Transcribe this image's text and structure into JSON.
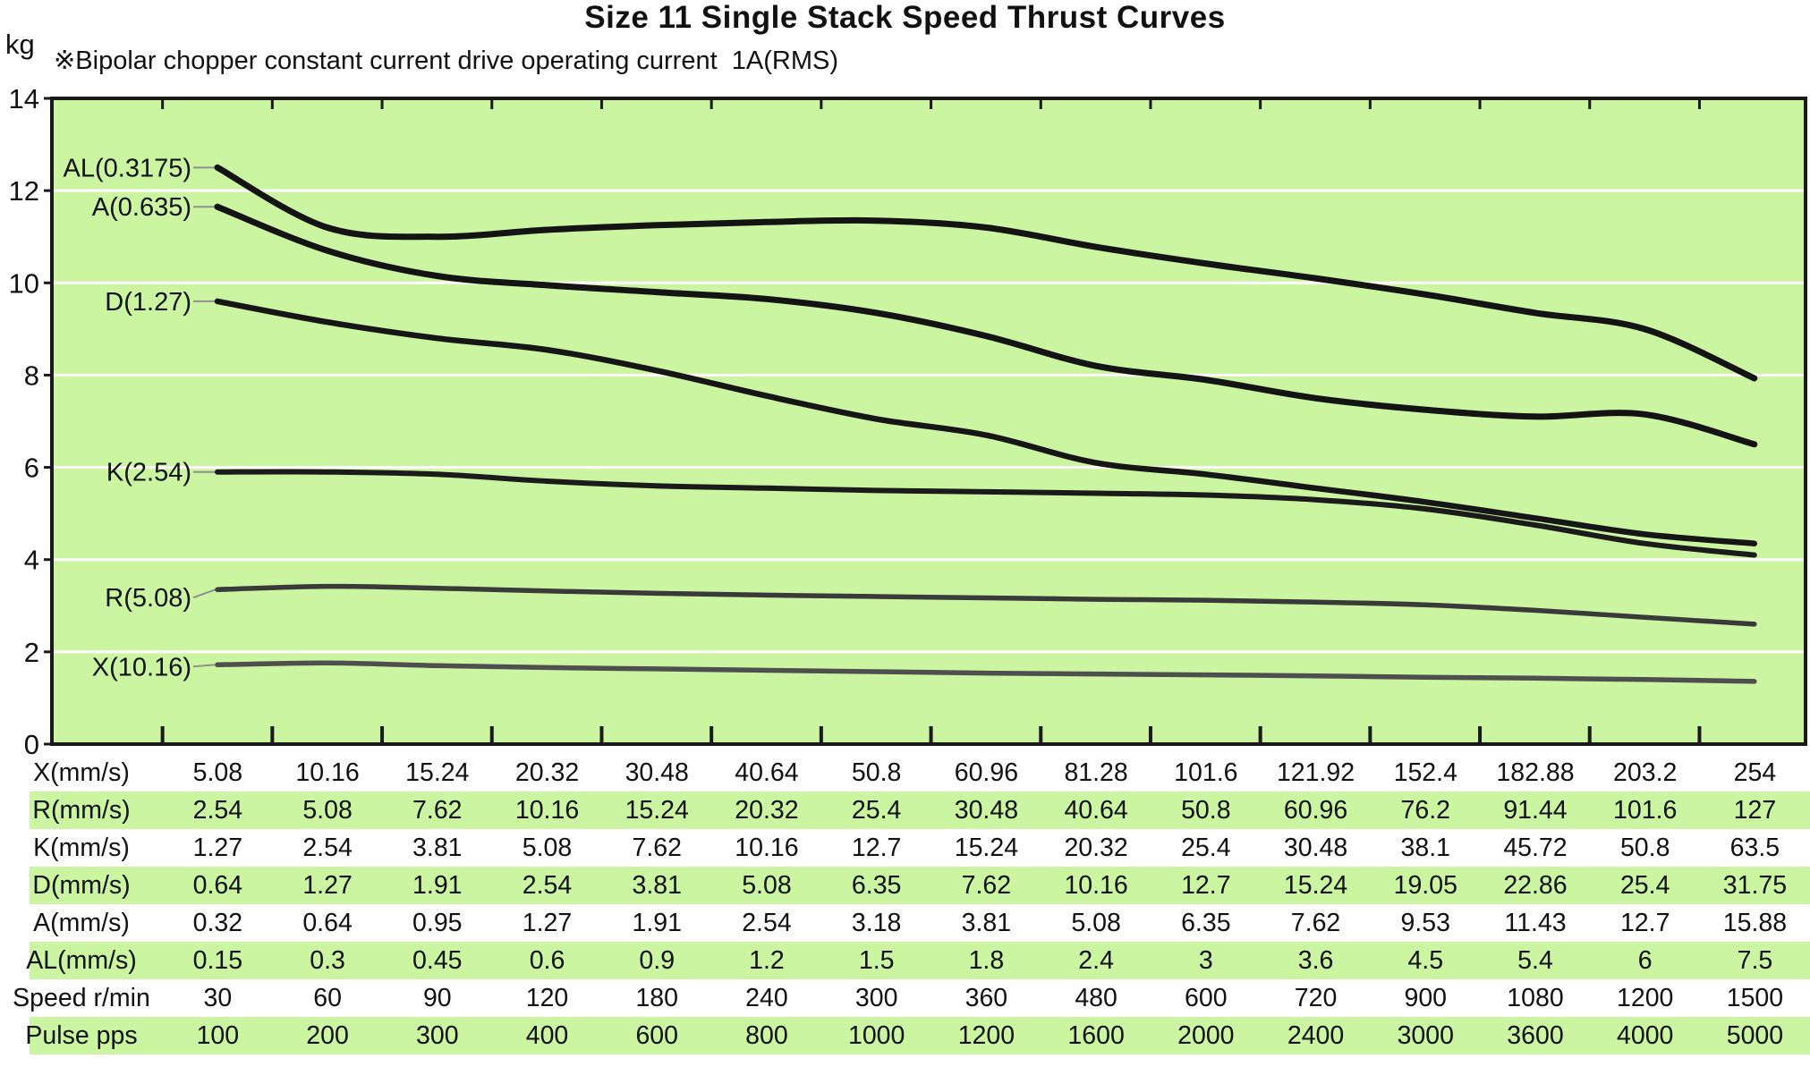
{
  "title": "Size 11 Single Stack Speed Thrust Curves",
  "note": "※Bipolar chopper constant current drive operating current  1A(RMS)",
  "y_axis": {
    "unit": "kg",
    "ticks": [
      "14",
      "12",
      "10",
      "8",
      "6",
      "4",
      "2",
      "0"
    ],
    "max": 14,
    "min": 0
  },
  "colors": {
    "plot_bg": "#cbf5a0",
    "grid": "#ffffff",
    "axis": "#1a1a1a",
    "leader": "#909090",
    "table_band": "#cbf5a0"
  },
  "chart_data": {
    "type": "line",
    "title": "Size 11 Single Stack Speed Thrust Curves",
    "ylabel": "kg",
    "ylim": [
      0,
      14
    ],
    "grid": "horizontal white lines every 2 kg",
    "legend_position": "labels at left end of each curve",
    "x_categories": [
      "5.08",
      "10.16",
      "15.24",
      "20.32",
      "30.48",
      "40.64",
      "50.8",
      "60.96",
      "81.28",
      "101.6",
      "121.92",
      "152.4",
      "182.88",
      "203.2",
      "254"
    ],
    "x_axis_label": "X(mm/s)",
    "series": [
      {
        "name": "AL",
        "label": "AL(0.3175)",
        "color": "#141414",
        "width": 7,
        "label_dy": 0,
        "values": [
          12.5,
          11.2,
          11.0,
          11.15,
          11.25,
          11.32,
          11.35,
          11.2,
          10.78,
          10.42,
          10.1,
          9.75,
          9.35,
          9.0,
          7.93
        ]
      },
      {
        "name": "A",
        "label": "A(0.635)",
        "color": "#141414",
        "width": 7,
        "label_dy": 0,
        "values": [
          11.65,
          10.7,
          10.15,
          9.95,
          9.8,
          9.65,
          9.35,
          8.85,
          8.2,
          7.9,
          7.5,
          7.25,
          7.1,
          7.15,
          6.5
        ]
      },
      {
        "name": "D",
        "label": "D(1.27)",
        "color": "#161616",
        "width": 6.5,
        "label_dy": 0,
        "values": [
          9.6,
          9.15,
          8.8,
          8.55,
          8.1,
          7.55,
          7.05,
          6.7,
          6.1,
          5.85,
          5.55,
          5.25,
          4.9,
          4.55,
          4.35
        ]
      },
      {
        "name": "K",
        "label": "K(2.54)",
        "color": "#1b1b1b",
        "width": 6,
        "label_dy": 0,
        "values": [
          5.9,
          5.9,
          5.85,
          5.7,
          5.6,
          5.55,
          5.5,
          5.47,
          5.44,
          5.4,
          5.3,
          5.1,
          4.75,
          4.35,
          4.1
        ]
      },
      {
        "name": "R",
        "label": "R(5.08)",
        "color": "#3a3a3a",
        "width": 5.5,
        "label_dy": 9,
        "values": [
          3.35,
          3.42,
          3.38,
          3.32,
          3.27,
          3.23,
          3.2,
          3.17,
          3.14,
          3.12,
          3.08,
          3.02,
          2.9,
          2.75,
          2.6
        ]
      },
      {
        "name": "X",
        "label": "X(10.16)",
        "color": "#4f4f4f",
        "width": 5.5,
        "label_dy": 2,
        "values": [
          1.72,
          1.76,
          1.7,
          1.66,
          1.63,
          1.6,
          1.57,
          1.54,
          1.52,
          1.5,
          1.48,
          1.45,
          1.43,
          1.4,
          1.36
        ]
      }
    ]
  },
  "table": {
    "rows": [
      {
        "header": "X(mm/s)",
        "band": "white",
        "values": [
          "5.08",
          "10.16",
          "15.24",
          "20.32",
          "30.48",
          "40.64",
          "50.8",
          "60.96",
          "81.28",
          "101.6",
          "121.92",
          "152.4",
          "182.88",
          "203.2",
          "254"
        ]
      },
      {
        "header": "R(mm/s)",
        "band": "green",
        "values": [
          "2.54",
          "5.08",
          "7.62",
          "10.16",
          "15.24",
          "20.32",
          "25.4",
          "30.48",
          "40.64",
          "50.8",
          "60.96",
          "76.2",
          "91.44",
          "101.6",
          "127"
        ]
      },
      {
        "header": "K(mm/s)",
        "band": "white",
        "values": [
          "1.27",
          "2.54",
          "3.81",
          "5.08",
          "7.62",
          "10.16",
          "12.7",
          "15.24",
          "20.32",
          "25.4",
          "30.48",
          "38.1",
          "45.72",
          "50.8",
          "63.5"
        ]
      },
      {
        "header": "D(mm/s)",
        "band": "green",
        "values": [
          "0.64",
          "1.27",
          "1.91",
          "2.54",
          "3.81",
          "5.08",
          "6.35",
          "7.62",
          "10.16",
          "12.7",
          "15.24",
          "19.05",
          "22.86",
          "25.4",
          "31.75"
        ]
      },
      {
        "header": "A(mm/s)",
        "band": "white",
        "values": [
          "0.32",
          "0.64",
          "0.95",
          "1.27",
          "1.91",
          "2.54",
          "3.18",
          "3.81",
          "5.08",
          "6.35",
          "7.62",
          "9.53",
          "11.43",
          "12.7",
          "15.88"
        ]
      },
      {
        "header": "AL(mm/s)",
        "band": "green",
        "values": [
          "0.15",
          "0.3",
          "0.45",
          "0.6",
          "0.9",
          "1.2",
          "1.5",
          "1.8",
          "2.4",
          "3",
          "3.6",
          "4.5",
          "5.4",
          "6",
          "7.5"
        ]
      },
      {
        "header": "Speed r/min",
        "band": "white",
        "values": [
          "30",
          "60",
          "90",
          "120",
          "180",
          "240",
          "300",
          "360",
          "480",
          "600",
          "720",
          "900",
          "1080",
          "1200",
          "1500"
        ]
      },
      {
        "header": "Pulse pps",
        "band": "green",
        "values": [
          "100",
          "200",
          "300",
          "400",
          "600",
          "800",
          "1000",
          "1200",
          "1600",
          "2000",
          "2400",
          "3000",
          "3600",
          "4000",
          "5000"
        ]
      }
    ]
  }
}
